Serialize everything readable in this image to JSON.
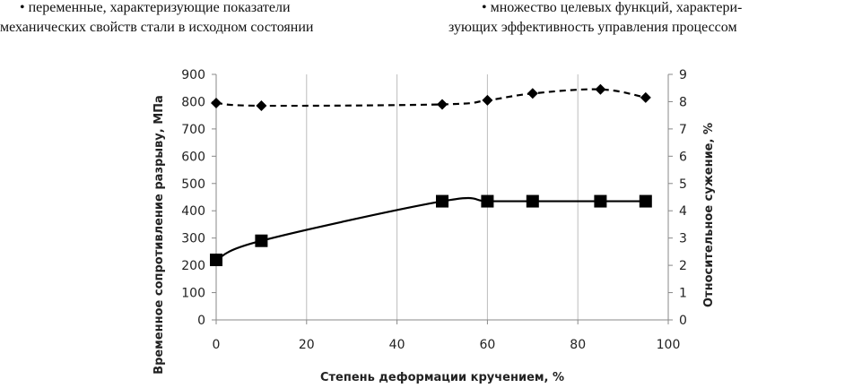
{
  "text": {
    "left_col": {
      "line1": "• переменные, характеризующие показатели",
      "line2": "механических свойств стали в исходном состоянии"
    },
    "right_col": {
      "line1": "• множество целевых функций, характери-",
      "line2": "зующих эффективность управления процессом"
    }
  },
  "chart_data": {
    "type": "line",
    "xlabel": "Степень деформации кручением, %",
    "ylabel": "Временное сопротивление разрыву, МПа",
    "y2label": "Относительное сужение, %",
    "xlim": [
      0,
      100
    ],
    "ylim": [
      0,
      900
    ],
    "y2lim": [
      0,
      9
    ],
    "x_ticks": [
      0,
      20,
      40,
      60,
      80,
      100
    ],
    "y_ticks": [
      0,
      100,
      200,
      300,
      400,
      500,
      600,
      700,
      800,
      900
    ],
    "y2_ticks": [
      0,
      1,
      2,
      3,
      4,
      5,
      6,
      7,
      8,
      9
    ],
    "grid": "vertical",
    "series": [
      {
        "axis": "left",
        "marker": "square",
        "style": "solid",
        "color": "#000000",
        "x": [
          0,
          10,
          50,
          60,
          70,
          85,
          95
        ],
        "y": [
          220,
          290,
          435,
          435,
          435,
          435,
          435
        ]
      },
      {
        "axis": "right",
        "marker": "diamond",
        "style": "dashed",
        "color": "#000000",
        "x": [
          0,
          10,
          50,
          60,
          70,
          85,
          95
        ],
        "y": [
          7.95,
          7.85,
          7.9,
          8.05,
          8.3,
          8.45,
          8.15
        ]
      }
    ]
  }
}
